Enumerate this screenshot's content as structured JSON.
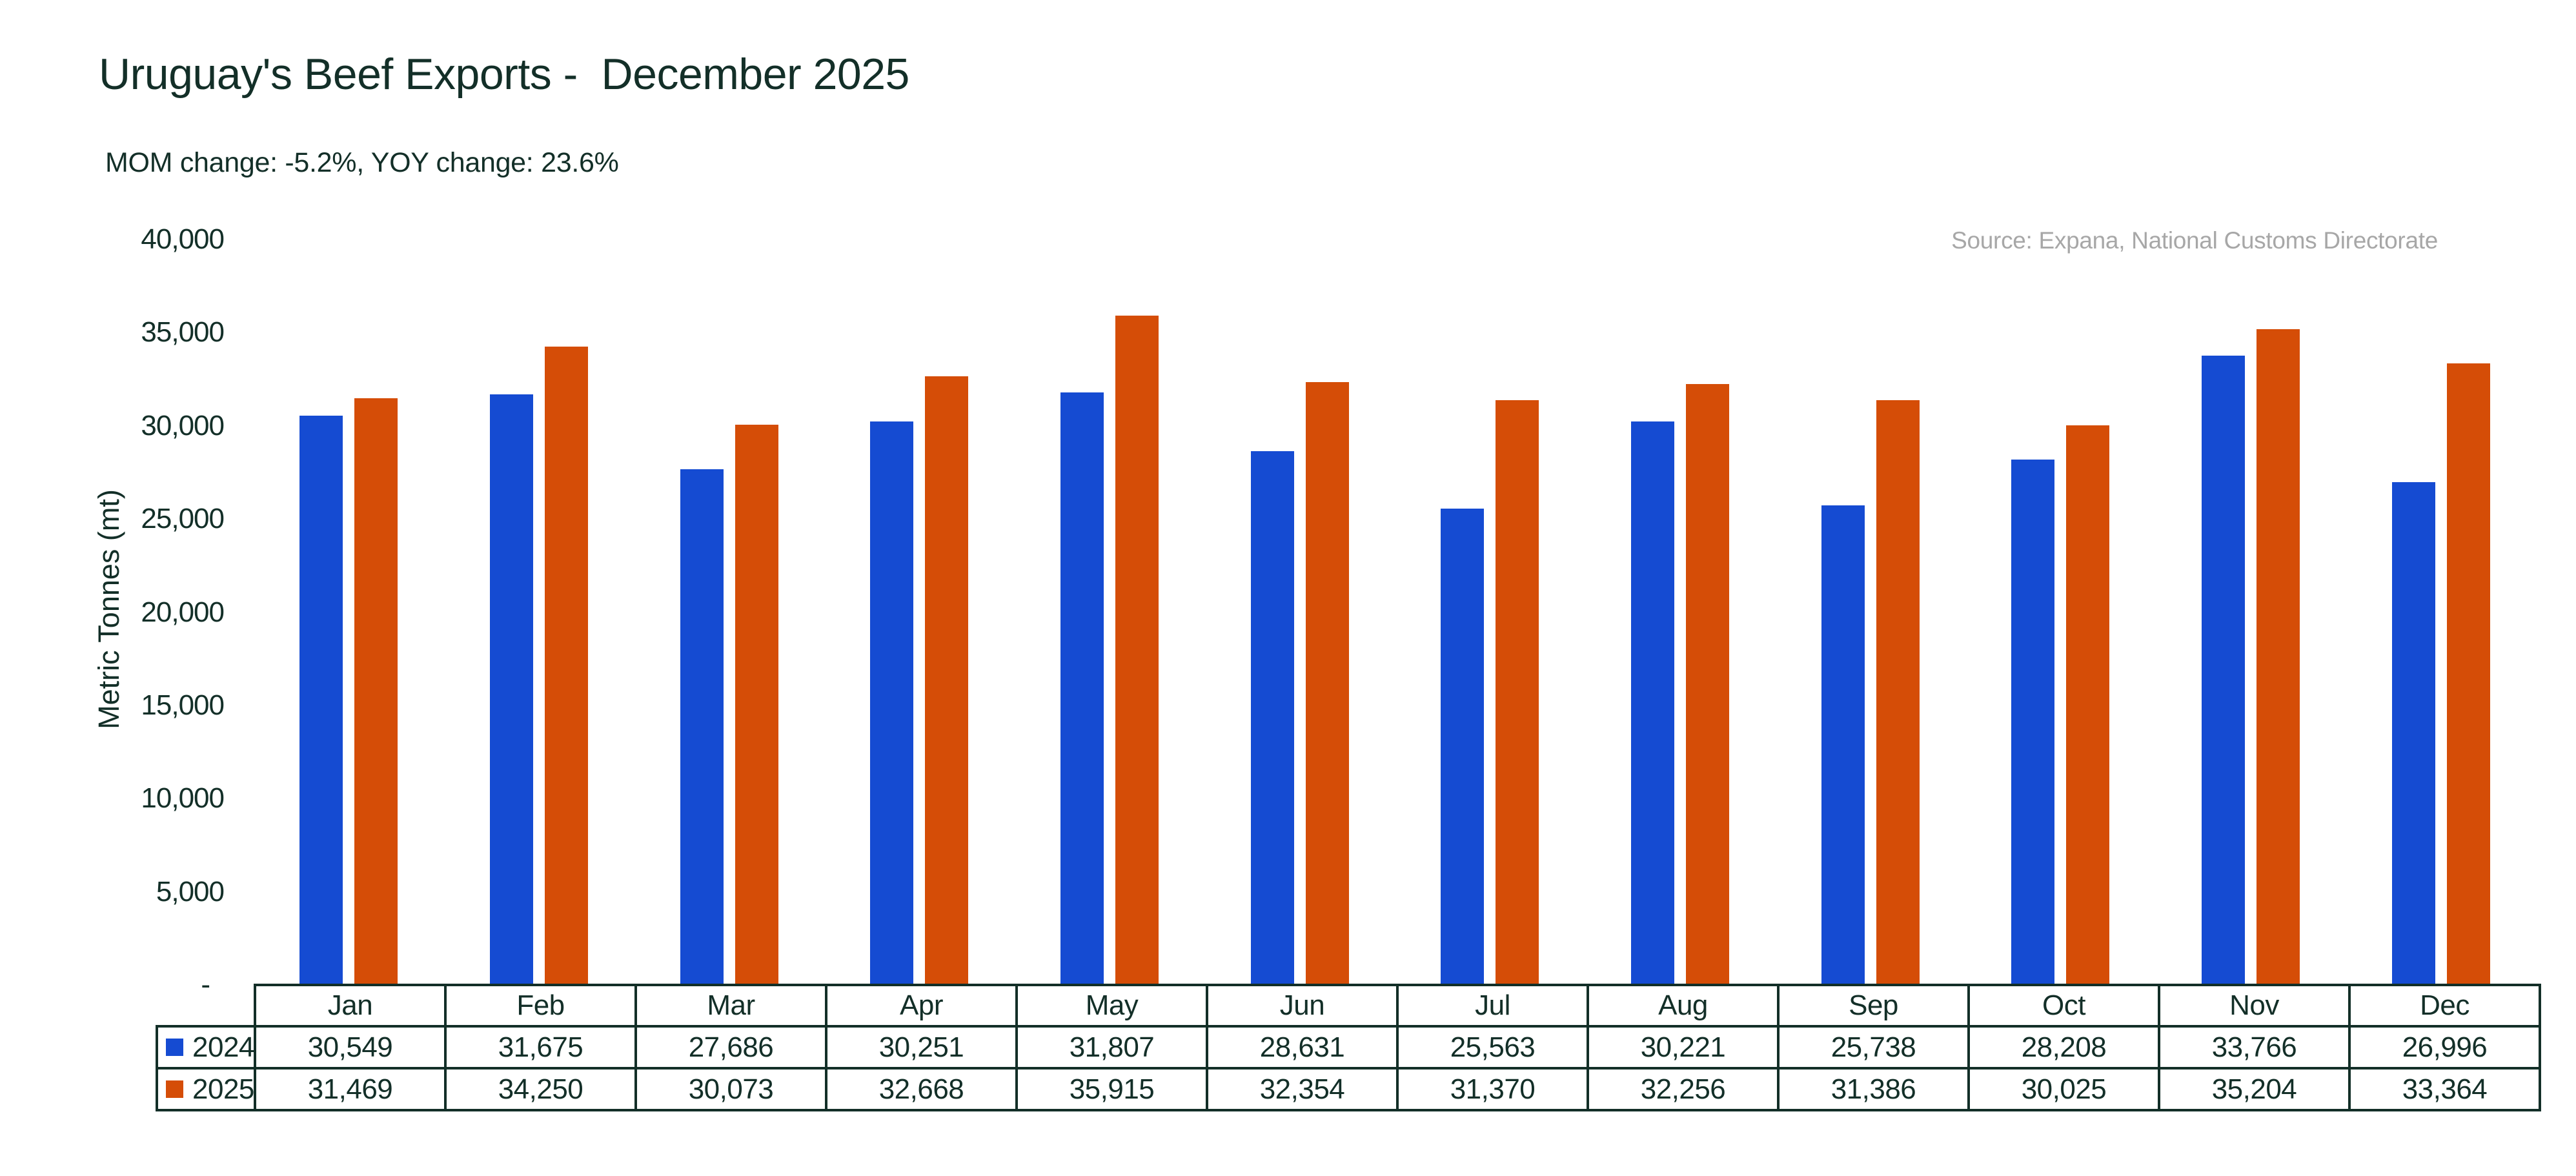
{
  "chart_data": {
    "type": "bar",
    "title": "Uruguay's Beef Exports -  December 2025",
    "subtitle": "MOM change: -5.2%, YOY change: 23.6%",
    "source_note": "Source: Expana, National Customs Directorate",
    "ylabel": "Metric Tonnes (mt)",
    "ylim": [
      0,
      40000
    ],
    "grid": false,
    "legend_position": "data-table-row-headers",
    "yticks": [
      {
        "value": 40000,
        "label": "40,000"
      },
      {
        "value": 35000,
        "label": "35,000"
      },
      {
        "value": 30000,
        "label": "30,000"
      },
      {
        "value": 25000,
        "label": "25,000"
      },
      {
        "value": 20000,
        "label": "20,000"
      },
      {
        "value": 15000,
        "label": "15,000"
      },
      {
        "value": 10000,
        "label": "10,000"
      },
      {
        "value": 5000,
        "label": "5,000"
      },
      {
        "value": 0,
        "label": "-"
      }
    ],
    "categories": [
      "Jan",
      "Feb",
      "Mar",
      "Apr",
      "May",
      "Jun",
      "Jul",
      "Aug",
      "Sep",
      "Oct",
      "Nov",
      "Dec"
    ],
    "series": [
      {
        "name": "2024",
        "color": "#154BD2",
        "values": [
          30549,
          31675,
          27686,
          30251,
          31807,
          28631,
          25563,
          30221,
          25738,
          28208,
          33766,
          26996
        ],
        "labels": [
          "30,549",
          "31,675",
          "27,686",
          "30,251",
          "31,807",
          "28,631",
          "25,563",
          "30,221",
          "25,738",
          "28,208",
          "33,766",
          "26,996"
        ]
      },
      {
        "name": "2025",
        "color": "#D54D07",
        "values": [
          31469,
          34250,
          30073,
          32668,
          35915,
          32354,
          31370,
          32256,
          31386,
          30025,
          35204,
          33364
        ],
        "labels": [
          "31,469",
          "34,250",
          "30,073",
          "32,668",
          "35,915",
          "32,354",
          "31,370",
          "32,256",
          "31,386",
          "30,025",
          "35,204",
          "33,364"
        ]
      }
    ]
  },
  "colors": {
    "dark": "#132F28",
    "muted": "#A7A7A7",
    "background": "#FFFFFF",
    "series_2024": "#154BD2",
    "series_2025": "#D54D07"
  }
}
